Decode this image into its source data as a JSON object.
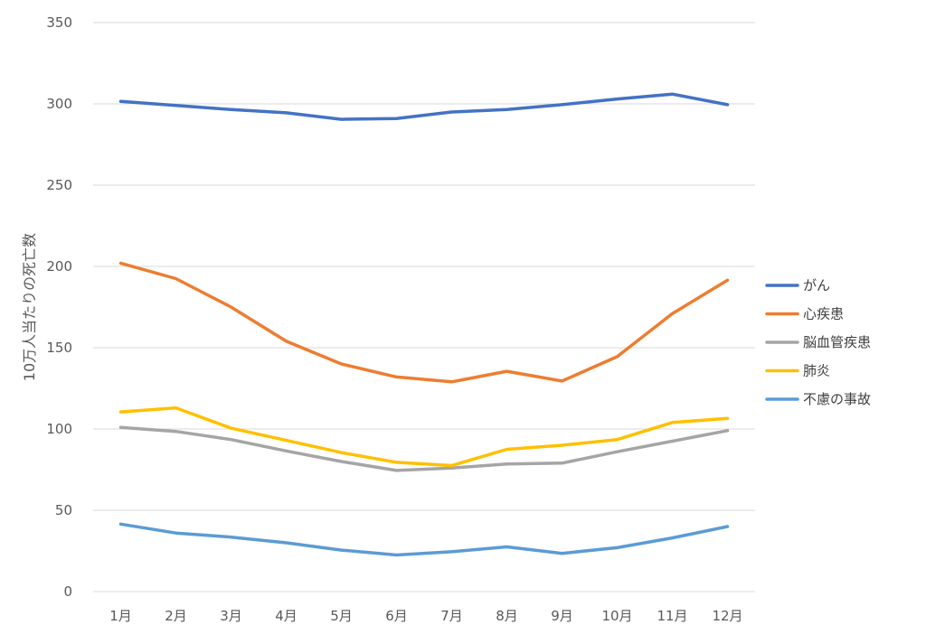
{
  "chart_data": {
    "type": "line",
    "title": "",
    "xlabel": "",
    "ylabel": "10万人当たりの死亡数",
    "categories": [
      "1月",
      "2月",
      "3月",
      "4月",
      "5月",
      "6月",
      "7月",
      "8月",
      "9月",
      "10月",
      "11月",
      "12月"
    ],
    "ylim": [
      0,
      350
    ],
    "yticks": [
      0,
      50,
      100,
      150,
      200,
      250,
      300,
      350
    ],
    "grid": true,
    "legend_position": "right",
    "series": [
      {
        "name": "がん",
        "color": "#4472C4",
        "values": [
          301.5,
          299,
          296.5,
          294.5,
          290.5,
          291,
          295,
          296.5,
          299.5,
          303,
          306,
          299.5
        ]
      },
      {
        "name": "心疾患",
        "color": "#ED7D31",
        "values": [
          202,
          192.5,
          175,
          154,
          140,
          132,
          129,
          135.5,
          129.5,
          144.5,
          171,
          191.5
        ]
      },
      {
        "name": "脳血管疾患",
        "color": "#A5A5A5",
        "values": [
          101,
          98.5,
          93.5,
          86.5,
          80,
          74.5,
          76,
          78.5,
          79,
          86,
          92.5,
          99
        ]
      },
      {
        "name": "肺炎",
        "color": "#FFC000",
        "values": [
          110.5,
          113,
          100.5,
          93,
          85.5,
          79.5,
          77.5,
          87.5,
          90,
          93.5,
          104,
          106.5
        ]
      },
      {
        "name": "不慮の事故",
        "color": "#5B9BD5",
        "values": [
          41.5,
          36,
          33.5,
          30,
          25.5,
          22.5,
          24.5,
          27.5,
          23.5,
          27,
          33,
          40
        ]
      }
    ]
  }
}
